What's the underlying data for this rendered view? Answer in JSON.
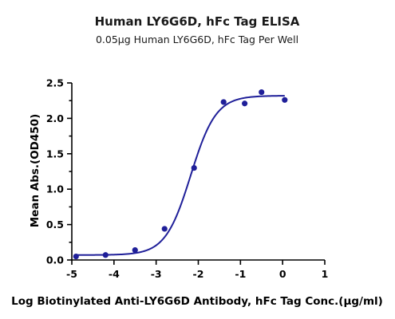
{
  "chart_data": {
    "type": "scatter",
    "title": "Human LY6G6D, hFc Tag ELISA",
    "subtitle": "0.05μg Human LY6G6D, hFc Tag Per Well",
    "xlabel": "Log Biotinylated Anti-LY6G6D Antibody, hFc Tag Conc.(μg/ml)",
    "ylabel": "Mean Abs.(OD450)",
    "xlim": [
      -5,
      1
    ],
    "ylim": [
      0,
      2.5
    ],
    "x_ticks": [
      "-5",
      "-4",
      "-3",
      "-2",
      "-1",
      "0",
      "1"
    ],
    "y_ticks": [
      "0.0",
      "0.5",
      "1.0",
      "1.5",
      "2.0",
      "2.5"
    ],
    "grid": false,
    "legend": "none",
    "series": [
      {
        "x": [
          -4.9,
          -4.2,
          -3.5,
          -2.8,
          -2.1,
          -1.4,
          -0.9,
          -0.5,
          0.05
        ],
        "y": [
          0.05,
          0.07,
          0.14,
          0.44,
          1.3,
          2.23,
          2.21,
          2.37,
          2.26
        ],
        "fit": {
          "model": "4PL",
          "bottom": 0.07,
          "top": 2.32,
          "logEC50": -2.18,
          "hill": 1.45
        }
      }
    ],
    "colors": {
      "series": "#1f1f99",
      "axis": "#000000"
    }
  }
}
